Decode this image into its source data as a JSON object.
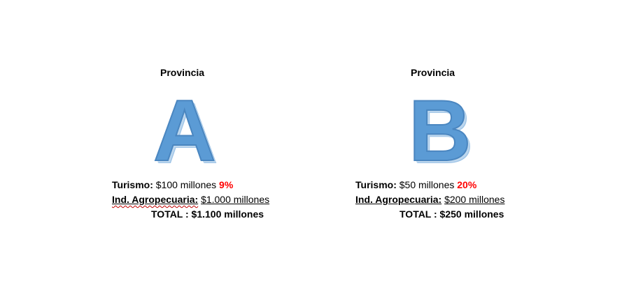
{
  "provinces": [
    {
      "heading": "Provincia",
      "letter": "A",
      "tourism_label": "Turismo:",
      "tourism_value": " $100 millones ",
      "tourism_pct": "9%",
      "agro_label": "Ind. Agropecuaria:",
      "agro_value": "$1.000 millones",
      "total": "TOTAL : $1.100 millones"
    },
    {
      "heading": "Provincia",
      "letter": "B",
      "tourism_label": "Turismo:",
      "tourism_value": " $50 millones ",
      "tourism_pct": "20%",
      "agro_label": "Ind. Agropecuaria:",
      "agro_value": "$200 millones",
      "total": "TOTAL : $250 millones"
    }
  ],
  "colors": {
    "letter_fill": "#5b9bd5",
    "percent": "#ff0000"
  }
}
